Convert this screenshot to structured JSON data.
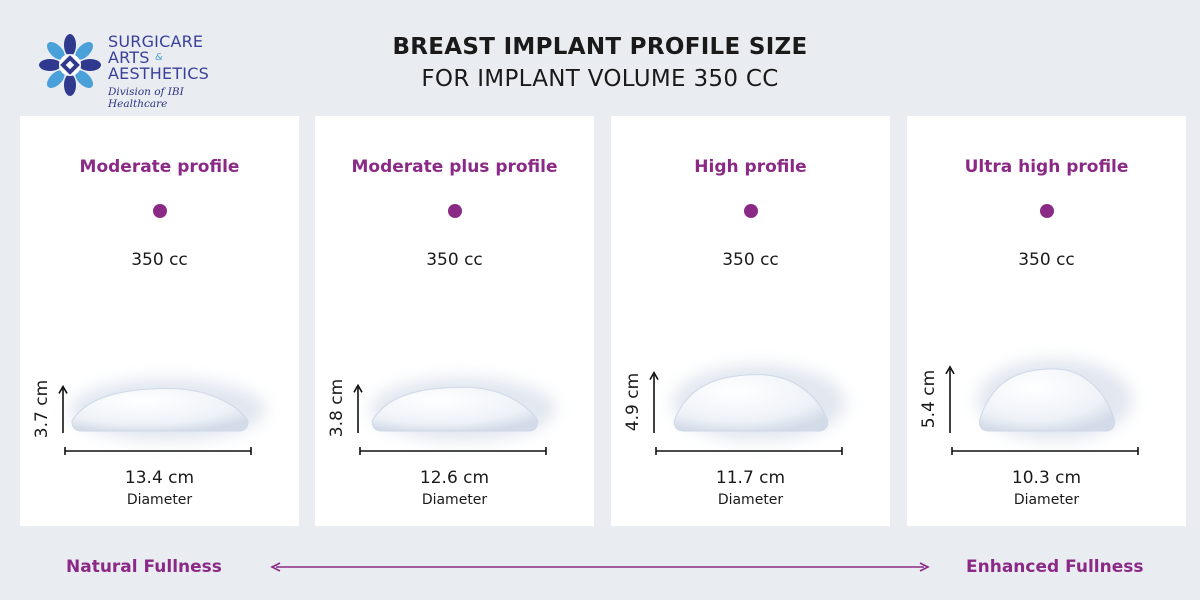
{
  "brand": {
    "line1": "SURGICARE",
    "line2": "ARTS",
    "amp": "&",
    "line3": "AESTHETICS",
    "division": "Division of IBI Healthcare",
    "colors": {
      "navy": "#3a3f9a",
      "light_blue": "#4aa0d8"
    }
  },
  "title": {
    "line1": "BREAST IMPLANT PROFILE SIZE",
    "line2": "FOR IMPLANT VOLUME 350 CC"
  },
  "accent_color": "#8b2a86",
  "profiles": [
    {
      "name": "Moderate profile",
      "volume": "350 cc",
      "height": "3.7 cm",
      "diameter": "13.4 cm",
      "diameter_label": "Diameter",
      "height_cm": 3.7,
      "diameter_cm": 13.4
    },
    {
      "name": "Moderate plus profile",
      "volume": "350 cc",
      "height": "3.8 cm",
      "diameter": "12.6 cm",
      "diameter_label": "Diameter",
      "height_cm": 3.8,
      "diameter_cm": 12.6
    },
    {
      "name": "High profile",
      "volume": "350 cc",
      "height": "4.9 cm",
      "diameter": "11.7 cm",
      "diameter_label": "Diameter",
      "height_cm": 4.9,
      "diameter_cm": 11.7
    },
    {
      "name": "Ultra high profile",
      "volume": "350 cc",
      "height": "5.4 cm",
      "diameter": "10.3 cm",
      "diameter_label": "Diameter",
      "height_cm": 5.4,
      "diameter_cm": 10.3
    }
  ],
  "scale": {
    "left_label": "Natural Fullness",
    "right_label": "Enhanced Fullness"
  }
}
